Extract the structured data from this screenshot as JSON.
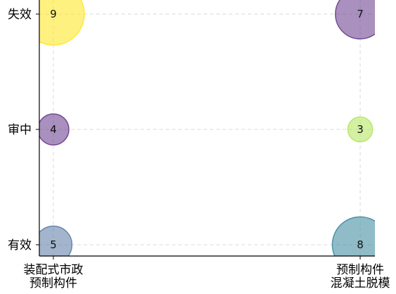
{
  "chart_data": {
    "type": "scatter",
    "title": "",
    "xlabel": "",
    "ylabel": "",
    "grid": true,
    "x_categories": [
      [
        "装配式市政",
        "预制构件"
      ],
      [
        "预制构件",
        "混凝土脱模"
      ]
    ],
    "y_categories": [
      "有效",
      "审中",
      "失效"
    ],
    "points": [
      {
        "x": 0,
        "y": 2,
        "value": 9,
        "color": "#fde725"
      },
      {
        "x": 0,
        "y": 1,
        "value": 4,
        "color": "#6b3f8f"
      },
      {
        "x": 0,
        "y": 0,
        "value": 5,
        "color": "#5e7fa7"
      },
      {
        "x": 1,
        "y": 2,
        "value": 7,
        "color": "#6b3f8f"
      },
      {
        "x": 1,
        "y": 1,
        "value": 3,
        "color": "#b5e661"
      },
      {
        "x": 1,
        "y": 0,
        "value": 8,
        "color": "#3f8ba0"
      }
    ],
    "style": {
      "grid_color": "#d8d8d8",
      "axis_color": "#000000",
      "bubble_opacity": 0.58
    }
  }
}
